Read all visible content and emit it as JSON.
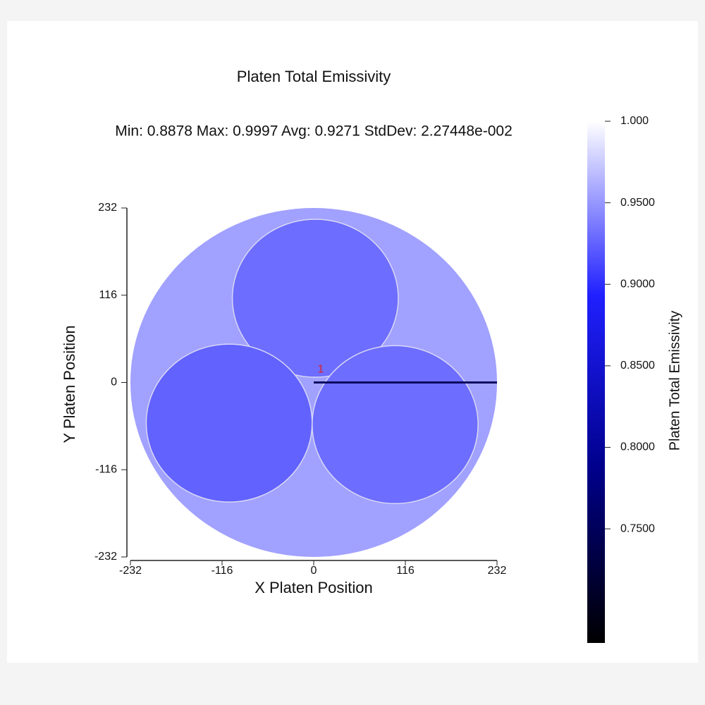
{
  "chart_data": {
    "type": "heatmap",
    "title": "Platen Total Emissivity",
    "subtitle": "Min: 0.8878  Max: 0.9997  Avg: 0.9271  StdDev: 2.27448e-002",
    "xlabel": "X Platen Position",
    "ylabel": "Y Platen Position",
    "xlim": [
      -232,
      232
    ],
    "ylim": [
      -232,
      232
    ],
    "xticks": [
      -232,
      -116,
      0,
      116,
      232
    ],
    "yticks": [
      -232,
      -116,
      0,
      116,
      232
    ],
    "platen": {
      "x": 0,
      "y": 0,
      "r": 232,
      "value": 0.955
    },
    "wafers": [
      {
        "x": 2,
        "y": 112,
        "r": 105,
        "value": 0.93
      },
      {
        "x": -107,
        "y": -54,
        "r": 105,
        "value": 0.925
      },
      {
        "x": 103,
        "y": -56,
        "r": 105,
        "value": 0.93
      }
    ],
    "annotation": "1",
    "colorbar": {
      "label": "Platen Total Emissivity",
      "lim": [
        0.68,
        1.0
      ],
      "colors": [
        "#000000",
        "#00008b",
        "#2020ff",
        "#ffffff"
      ],
      "ticks": [
        {
          "value": 0.75,
          "label": "0.7500"
        },
        {
          "value": 0.8,
          "label": "0.8000"
        },
        {
          "value": 0.85,
          "label": "0.8500"
        },
        {
          "value": 0.9,
          "label": "0.9000"
        },
        {
          "value": 0.95,
          "label": "0.9500"
        },
        {
          "value": 1.0,
          "label": "1.000"
        }
      ]
    }
  }
}
